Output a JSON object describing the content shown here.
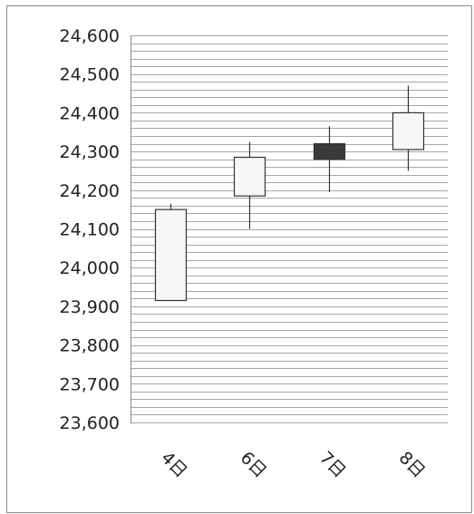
{
  "chart_data": {
    "type": "candlestick",
    "title": "",
    "xlabel": "",
    "ylabel": "",
    "ylim": [
      23600,
      24600
    ],
    "yticks": [
      24600,
      24500,
      24400,
      24300,
      24200,
      24100,
      24000,
      23900,
      23800,
      23700,
      23600
    ],
    "ytick_labels": [
      "24,600",
      "24,500",
      "24,400",
      "24,300",
      "24,200",
      "24,100",
      "24,000",
      "23,900",
      "23,800",
      "23,700",
      "23,600"
    ],
    "minor_grid_step": 20,
    "grid": true,
    "categories": [
      "4日",
      "6日",
      "7日",
      "8日"
    ],
    "candles": [
      {
        "label": "4日",
        "open": 23915,
        "close": 24150,
        "high": 24165,
        "low": 23915,
        "direction": "up"
      },
      {
        "label": "6日",
        "open": 24185,
        "close": 24285,
        "high": 24325,
        "low": 24100,
        "direction": "up"
      },
      {
        "label": "7日",
        "open": 24320,
        "close": 24280,
        "high": 24365,
        "low": 24195,
        "direction": "down"
      },
      {
        "label": "8日",
        "open": 24305,
        "close": 24400,
        "high": 24470,
        "low": 24250,
        "direction": "up"
      }
    ],
    "colors": {
      "up_fill": "#f7f7f7",
      "down_fill": "#3a3a3a",
      "edge": "#333333",
      "grid": "#a6a6a6"
    }
  }
}
